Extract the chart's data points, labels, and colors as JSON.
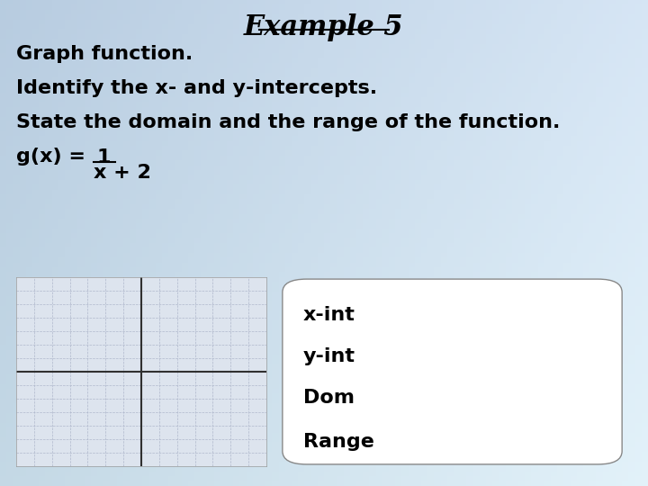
{
  "title": "Example 5",
  "line1": "Graph function.",
  "line2": "Identify the x- and y-intercepts.",
  "line3": "State the domain and the range of the function.",
  "line4a": "g(x) = ",
  "line4b": "1",
  "line4c": "x + 2",
  "box_labels": [
    "x-int",
    "y-int",
    "Dom",
    "Range"
  ],
  "grid_color": "#c8c8d8",
  "axis_color": "#303030",
  "text_color": "#000000"
}
